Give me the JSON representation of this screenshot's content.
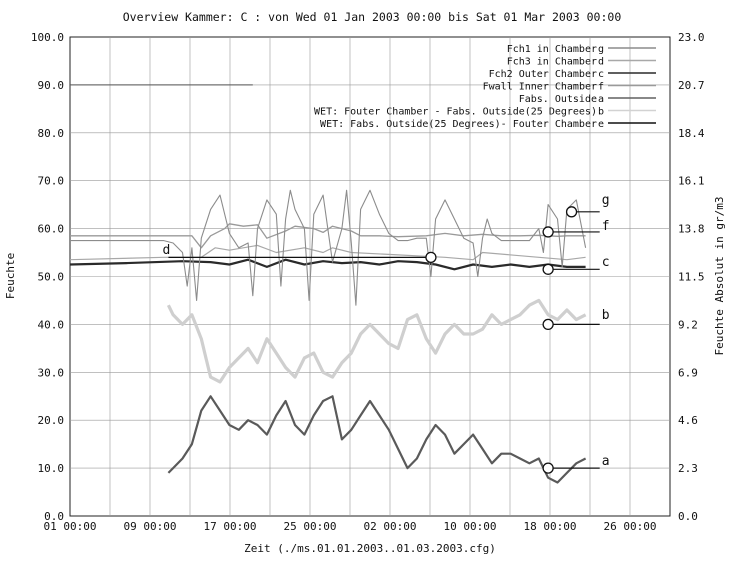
{
  "chart_data": {
    "type": "line",
    "title": "Overview Kammer: C : von Wed 01 Jan 2003 00:00 bis Sat 01 Mar 2003 00:00",
    "xlabel": "Zeit (./ms.01.01.2003..01.03.2003.cfg)",
    "ylabel": "Feuchte",
    "y2label": "Feuchte Absolut in gr/m3",
    "x_tick_labels": [
      "01 00:00",
      "09 00:00",
      "17 00:00",
      "25 00:00",
      "02 00:00",
      "10 00:00",
      "18 00:00",
      "26 00:00"
    ],
    "y_tick_labels": [
      "0.0",
      "10.0",
      "20.0",
      "30.0",
      "40.0",
      "50.0",
      "60.0",
      "70.0",
      "80.0",
      "90.0",
      "100.0"
    ],
    "y2_tick_labels": [
      "0.0",
      "2.3",
      "4.6",
      "6.9",
      "9.2",
      "11.5",
      "13.8",
      "16.1",
      "18.4",
      "20.7",
      "23.0"
    ],
    "ylim": [
      0,
      100
    ],
    "y2lim": [
      0,
      23
    ],
    "xlim": [
      0,
      64
    ],
    "grid": true,
    "legend_position": "top-right",
    "legend": [
      {
        "label": "Fch1 in Chamber",
        "marker": "g",
        "color": "#8c8c8c"
      },
      {
        "label": "Fch3 in Chamber",
        "marker": "d",
        "color": "#a8a8a8"
      },
      {
        "label": "Fch2 Outer Chamber",
        "marker": "c",
        "color": "#2a2a2a"
      },
      {
        "label": "Fwall Inner Chamber",
        "marker": "f",
        "color": "#9a9a9a"
      },
      {
        "label": "Fabs. Outside",
        "marker": "a",
        "color": "#606060"
      },
      {
        "label": "WET: Fouter Chamber - Fabs. Outside(25 Degrees)",
        "marker": "b",
        "color": "#d2d2d2"
      },
      {
        "label": "WET: Fabs. Outside(25 Degrees)- Fouter Chamber",
        "marker": "e",
        "color": "#111111"
      }
    ],
    "series": [
      {
        "marker": "c",
        "color": "#2a2a2a",
        "width": 2.2,
        "x": [
          0,
          6,
          12,
          15,
          17,
          19,
          21,
          23,
          25,
          27,
          29,
          31,
          33,
          35,
          37,
          39,
          41,
          43,
          45,
          47,
          49,
          51,
          53,
          55
        ],
        "y": [
          52.5,
          52.8,
          53.2,
          53,
          52.5,
          53.5,
          52,
          53.5,
          52.5,
          53.2,
          52.8,
          53,
          52.5,
          53.2,
          53,
          52.5,
          51.5,
          52.5,
          52,
          52.5,
          52,
          52.5,
          52,
          52
        ]
      },
      {
        "marker": "d",
        "color": "#a8a8a8",
        "width": 1.2,
        "x": [
          0,
          10,
          14,
          15.5,
          17,
          20,
          22,
          25,
          27,
          28,
          30,
          35,
          40,
          43,
          44,
          50,
          53,
          55
        ],
        "y": [
          53.5,
          54,
          54,
          56,
          55.5,
          56.5,
          55,
          56,
          55,
          56,
          55,
          54.5,
          54,
          53.5,
          55,
          54,
          53.5,
          54
        ]
      },
      {
        "marker": "f",
        "color": "#9a9a9a",
        "width": 1.3,
        "x": [
          0,
          5,
          10,
          13,
          14,
          15,
          16.5,
          17,
          18.5,
          20,
          21,
          23,
          24,
          26,
          27,
          28,
          29,
          30,
          31,
          33,
          35,
          38,
          40,
          42,
          44,
          46,
          48,
          50,
          52,
          53,
          55
        ],
        "y": [
          58.5,
          58.5,
          58.5,
          58.5,
          56,
          58.5,
          60,
          61,
          60.5,
          60.8,
          58,
          59.5,
          60.5,
          60,
          59.2,
          60.5,
          60,
          59.5,
          58.5,
          58.5,
          58.3,
          58.5,
          59,
          58.5,
          58.8,
          58.5,
          58.5,
          58.6,
          58.4,
          58.5,
          58.5
        ]
      },
      {
        "marker": "g",
        "color": "#8c8c8c",
        "width": 1.1,
        "x": [
          0,
          5,
          10,
          11,
          12,
          12.5,
          13,
          13.5,
          14,
          15,
          16,
          17,
          18,
          19,
          19.5,
          20,
          21,
          22,
          22.5,
          23,
          23.5,
          24,
          25,
          25.5,
          26,
          27,
          27.5,
          28,
          29,
          29.5,
          30,
          30.5,
          31,
          32,
          33,
          34,
          35,
          36,
          37,
          38,
          38.5,
          39,
          40,
          41,
          42,
          43,
          43.5,
          44,
          44.5,
          45,
          46,
          47,
          48,
          49,
          50,
          50.5,
          51,
          52,
          52.5,
          53,
          54,
          55
        ],
        "y": [
          57.5,
          57.5,
          57.5,
          57,
          55,
          48,
          56,
          45,
          58,
          64,
          67,
          59,
          56,
          57,
          46,
          60,
          66,
          63,
          48,
          62,
          68,
          64,
          60,
          45,
          63,
          67,
          60,
          53,
          60,
          68,
          57,
          44,
          64,
          68,
          63,
          59,
          57.5,
          57.5,
          58,
          58,
          50,
          62,
          66,
          62,
          58,
          57,
          50,
          58,
          62,
          59,
          57.5,
          57.5,
          57.5,
          57.5,
          60,
          55,
          65,
          62,
          52,
          64,
          66,
          56
        ]
      },
      {
        "marker": "b",
        "color": "#cfcfcf",
        "width": 3.2,
        "x": [
          10.5,
          11,
          12,
          13,
          14,
          14.5,
          15,
          16,
          17,
          18,
          19,
          20,
          21,
          22,
          23,
          24,
          25,
          26,
          27,
          28,
          29,
          30,
          31,
          32,
          33,
          34,
          35,
          36,
          37,
          38,
          39,
          40,
          41,
          42,
          43,
          44,
          45,
          46,
          47,
          48,
          49,
          50,
          51,
          52,
          53,
          54,
          55
        ],
        "y": [
          44,
          42,
          40,
          42,
          37,
          33,
          29,
          28,
          31,
          33,
          35,
          32,
          37,
          34,
          31,
          29,
          33,
          34,
          30,
          29,
          32,
          34,
          38,
          40,
          38,
          36,
          35,
          41,
          42,
          37,
          34,
          38,
          40,
          38,
          38,
          39,
          42,
          40,
          41,
          42,
          44,
          45,
          42,
          41,
          43,
          41,
          42
        ]
      },
      {
        "marker": "a",
        "color": "#5a5a5a",
        "width": 2.2,
        "x": [
          10.5,
          11,
          12,
          13,
          14,
          15,
          16,
          17,
          18,
          19,
          20,
          21,
          22,
          23,
          24,
          25,
          26,
          27,
          28,
          29,
          30,
          31,
          32,
          33,
          34,
          35,
          36,
          37,
          38,
          39,
          40,
          41,
          42,
          43,
          44,
          45,
          46,
          47,
          48,
          49,
          50,
          51,
          52,
          53,
          54,
          55
        ],
        "y": [
          9,
          10,
          12,
          15,
          22,
          25,
          22,
          19,
          18,
          20,
          19,
          17,
          21,
          24,
          19,
          17,
          21,
          24,
          25,
          16,
          18,
          21,
          24,
          21,
          18,
          14,
          10,
          12,
          16,
          19,
          17,
          13,
          15,
          17,
          14,
          11,
          13,
          13,
          12,
          11,
          12,
          8,
          7,
          9,
          11,
          12
        ]
      },
      {
        "marker": "e",
        "color": "#555555",
        "width": 1.0,
        "x": [
          0,
          2,
          7,
          10,
          12,
          17,
          19.5
        ],
        "y": [
          90,
          90,
          90,
          90,
          90,
          90,
          90
        ]
      }
    ],
    "point_labels": [
      {
        "marker": "g",
        "x": 53.5,
        "y": 63.5,
        "line_to": 56.5,
        "text_y": 66
      },
      {
        "marker": "f",
        "x": 51,
        "y": 59.3,
        "line_to": 56.5,
        "text_y": 60.5
      },
      {
        "marker": "d",
        "x": 38.5,
        "y": 54,
        "line_to": 10.5,
        "text_y": 55.5
      },
      {
        "marker": "c",
        "x": 51,
        "y": 51.5,
        "line_to": 56.5,
        "text_y": 53
      },
      {
        "marker": "b",
        "x": 51,
        "y": 40,
        "line_to": 56.5,
        "text_y": 42
      },
      {
        "marker": "a",
        "x": 51,
        "y": 10,
        "line_to": 56.5,
        "text_y": 11.5
      }
    ]
  }
}
